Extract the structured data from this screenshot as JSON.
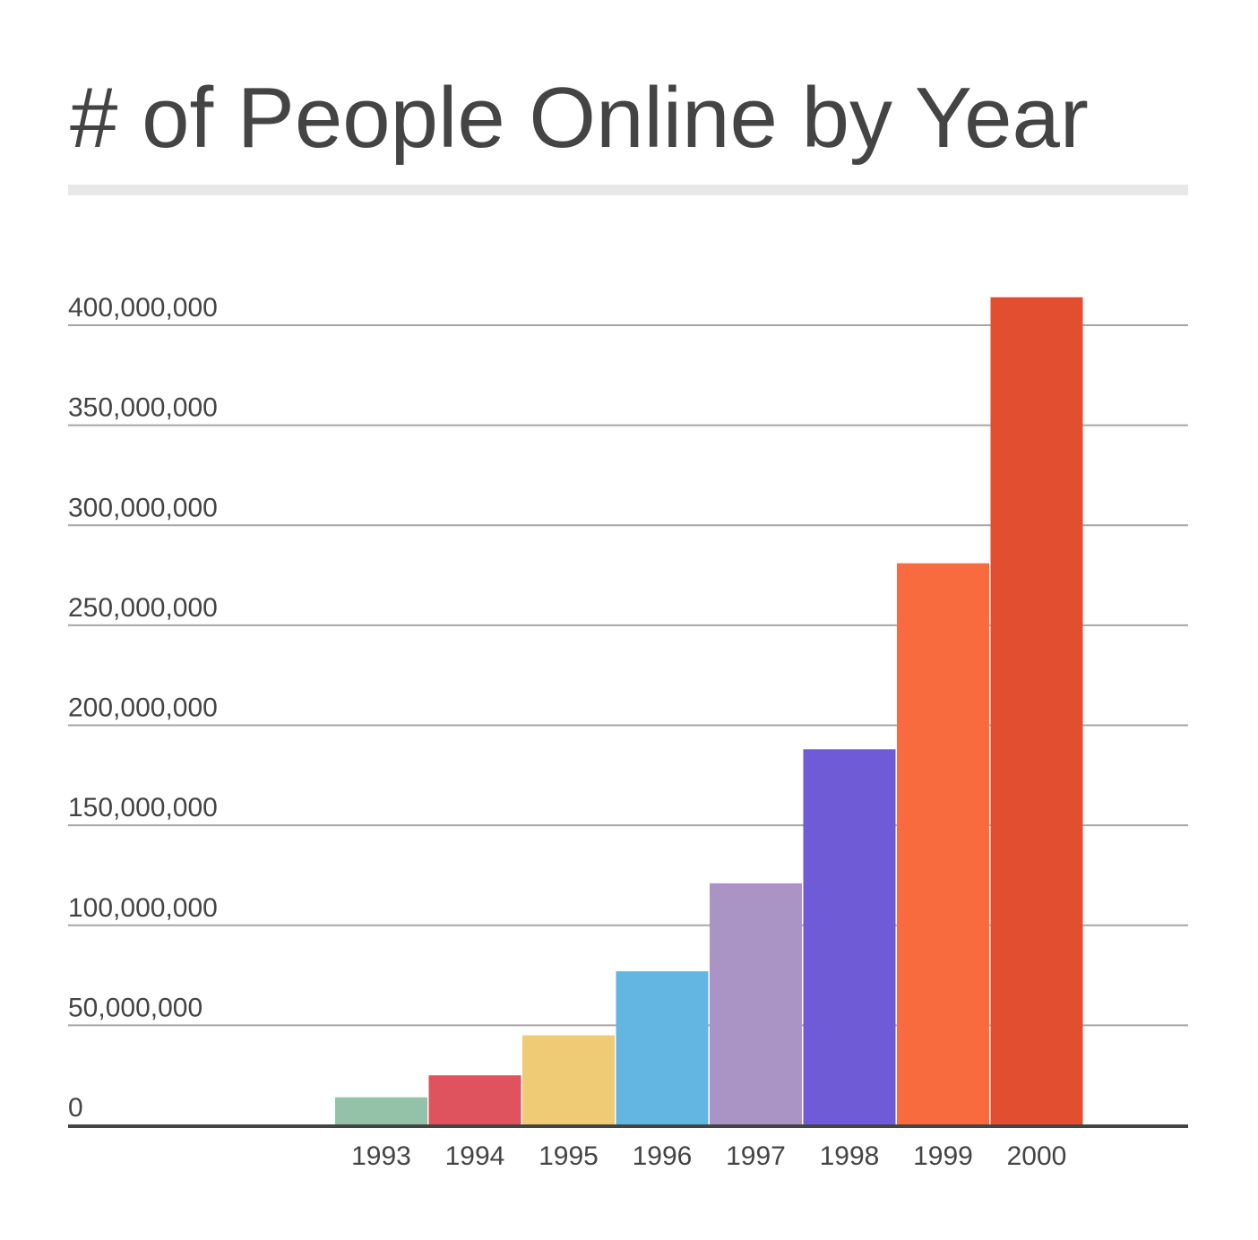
{
  "chart_data": {
    "type": "bar",
    "title": "# of People Online by Year",
    "xlabel": "",
    "ylabel": "",
    "categories": [
      "1993",
      "1994",
      "1995",
      "1996",
      "1997",
      "1998",
      "1999",
      "2000"
    ],
    "values": [
      14000000,
      25000000,
      45000000,
      77000000,
      121000000,
      188000000,
      281000000,
      414000000
    ],
    "colors": [
      "#93c2a8",
      "#de535e",
      "#eecb74",
      "#63b6e2",
      "#aa94c5",
      "#705bd7",
      "#f86b3f",
      "#e24f30"
    ],
    "ylim": [
      0,
      400000000
    ],
    "yticks": [
      {
        "value": 0,
        "label": "0"
      },
      {
        "value": 50000000,
        "label": "50,000,000"
      },
      {
        "value": 100000000,
        "label": "100,000,000"
      },
      {
        "value": 150000000,
        "label": "150,000,000"
      },
      {
        "value": 200000000,
        "label": "200,000,000"
      },
      {
        "value": 250000000,
        "label": "250,000,000"
      },
      {
        "value": 300000000,
        "label": "300,000,000"
      },
      {
        "value": 350000000,
        "label": "350,000,000"
      },
      {
        "value": 400000000,
        "label": "400,000,000"
      }
    ],
    "grid": true,
    "legend": "none"
  }
}
